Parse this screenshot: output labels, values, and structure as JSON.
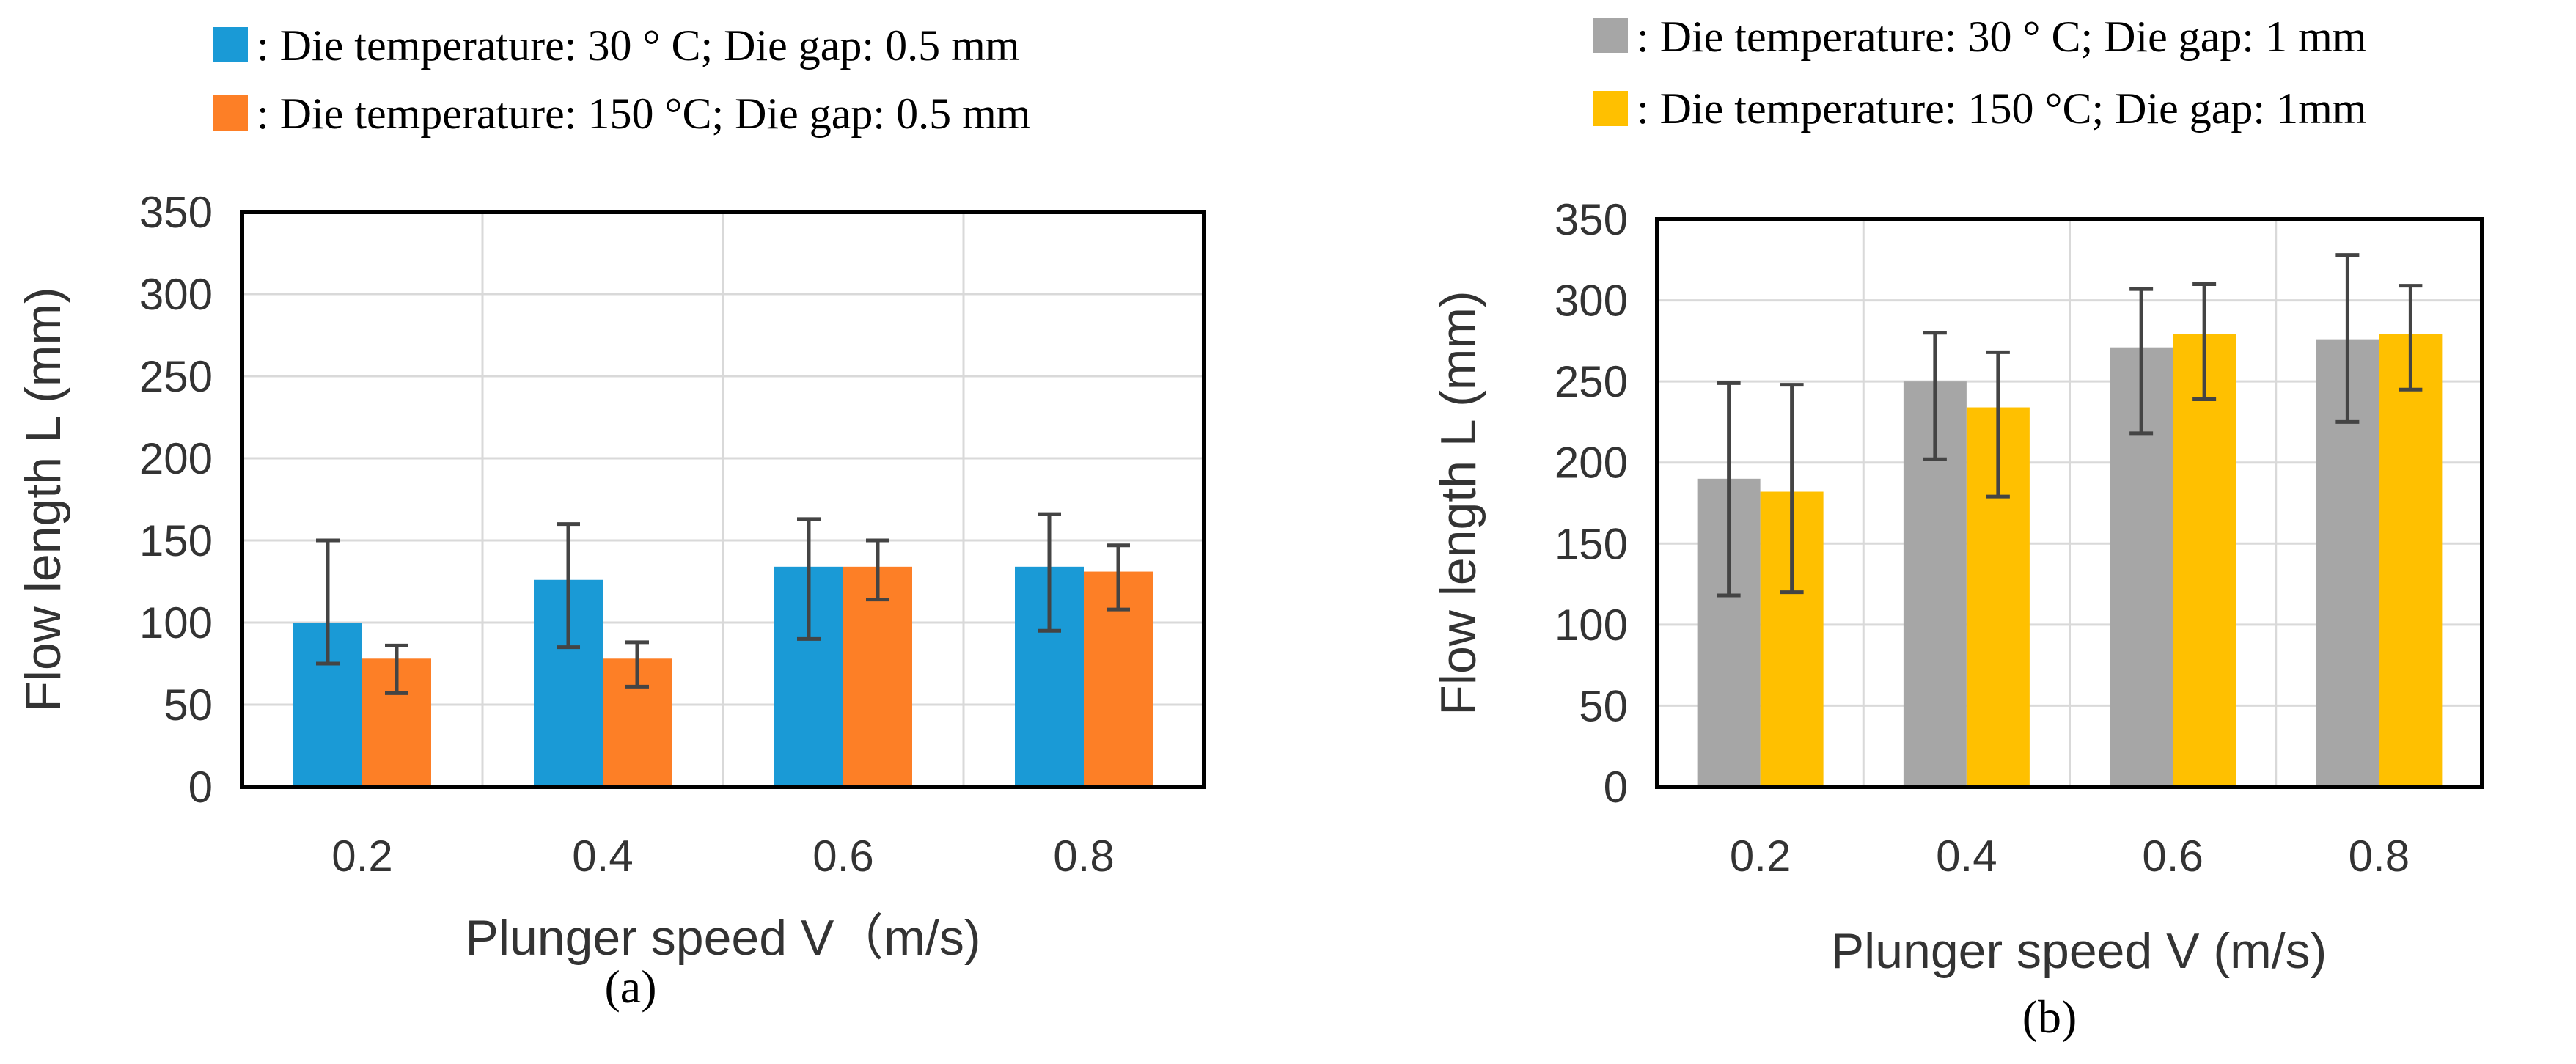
{
  "chart_data": [
    {
      "type": "bar",
      "panel_label": "(a)",
      "categories": [
        "0.2",
        "0.4",
        "0.6",
        "0.8"
      ],
      "series": [
        {
          "name": ": Die temperature: 30°C; Die gap: 0.5mm",
          "legend_label": ": Die temperature: 30 ° C; Die gap: 0.5 mm",
          "color": "#1a9ad6",
          "values": [
            100,
            126,
            134,
            134
          ],
          "err_low": [
            75,
            85,
            90,
            95
          ],
          "err_high": [
            150,
            160,
            163,
            166
          ]
        },
        {
          "name": ": Die temperature: 150°C; Die gap: 0.5mm",
          "legend_label": ": Die temperature: 150 °C; Die gap: 0.5 mm",
          "color": "#fd7f26",
          "values": [
            78,
            78,
            134,
            131
          ],
          "err_low": [
            57,
            61,
            114,
            108
          ],
          "err_high": [
            86,
            88,
            150,
            147
          ]
        }
      ],
      "xlabel": "Plunger speed V（m/s)",
      "ylabel": "Flow length L (mm)",
      "ylim": [
        0,
        350
      ],
      "yticks": [
        "0",
        "50",
        "100",
        "150",
        "200",
        "250",
        "300",
        "350"
      ],
      "grid": true
    },
    {
      "type": "bar",
      "panel_label": "(b)",
      "categories": [
        "0.2",
        "0.4",
        "0.6",
        "0.8"
      ],
      "series": [
        {
          "name": ": Die temperature: 30°C; Die gap: 1mm",
          "legend_label": ": Die temperature: 30 ° C; Die gap: 1 mm",
          "color": "#a6a6a6",
          "values": [
            190,
            250,
            271,
            276
          ],
          "err_low": [
            118,
            202,
            218,
            225
          ],
          "err_high": [
            249,
            280,
            307,
            328
          ]
        },
        {
          "name": ": Die temperature: 150°C; Die gap: 1mm",
          "legend_label": ": Die temperature: 150 °C; Die gap: 1mm",
          "color": "#ffc000",
          "values": [
            182,
            234,
            279,
            279
          ],
          "err_low": [
            120,
            179,
            239,
            245
          ],
          "err_high": [
            248,
            268,
            310,
            309
          ]
        }
      ],
      "xlabel": "Plunger  speed V (m/s)",
      "ylabel": "Flow length L (mm)",
      "ylim": [
        0,
        350
      ],
      "yticks": [
        "0",
        "50",
        "100",
        "150",
        "200",
        "250",
        "300",
        "350"
      ],
      "grid": true
    }
  ]
}
